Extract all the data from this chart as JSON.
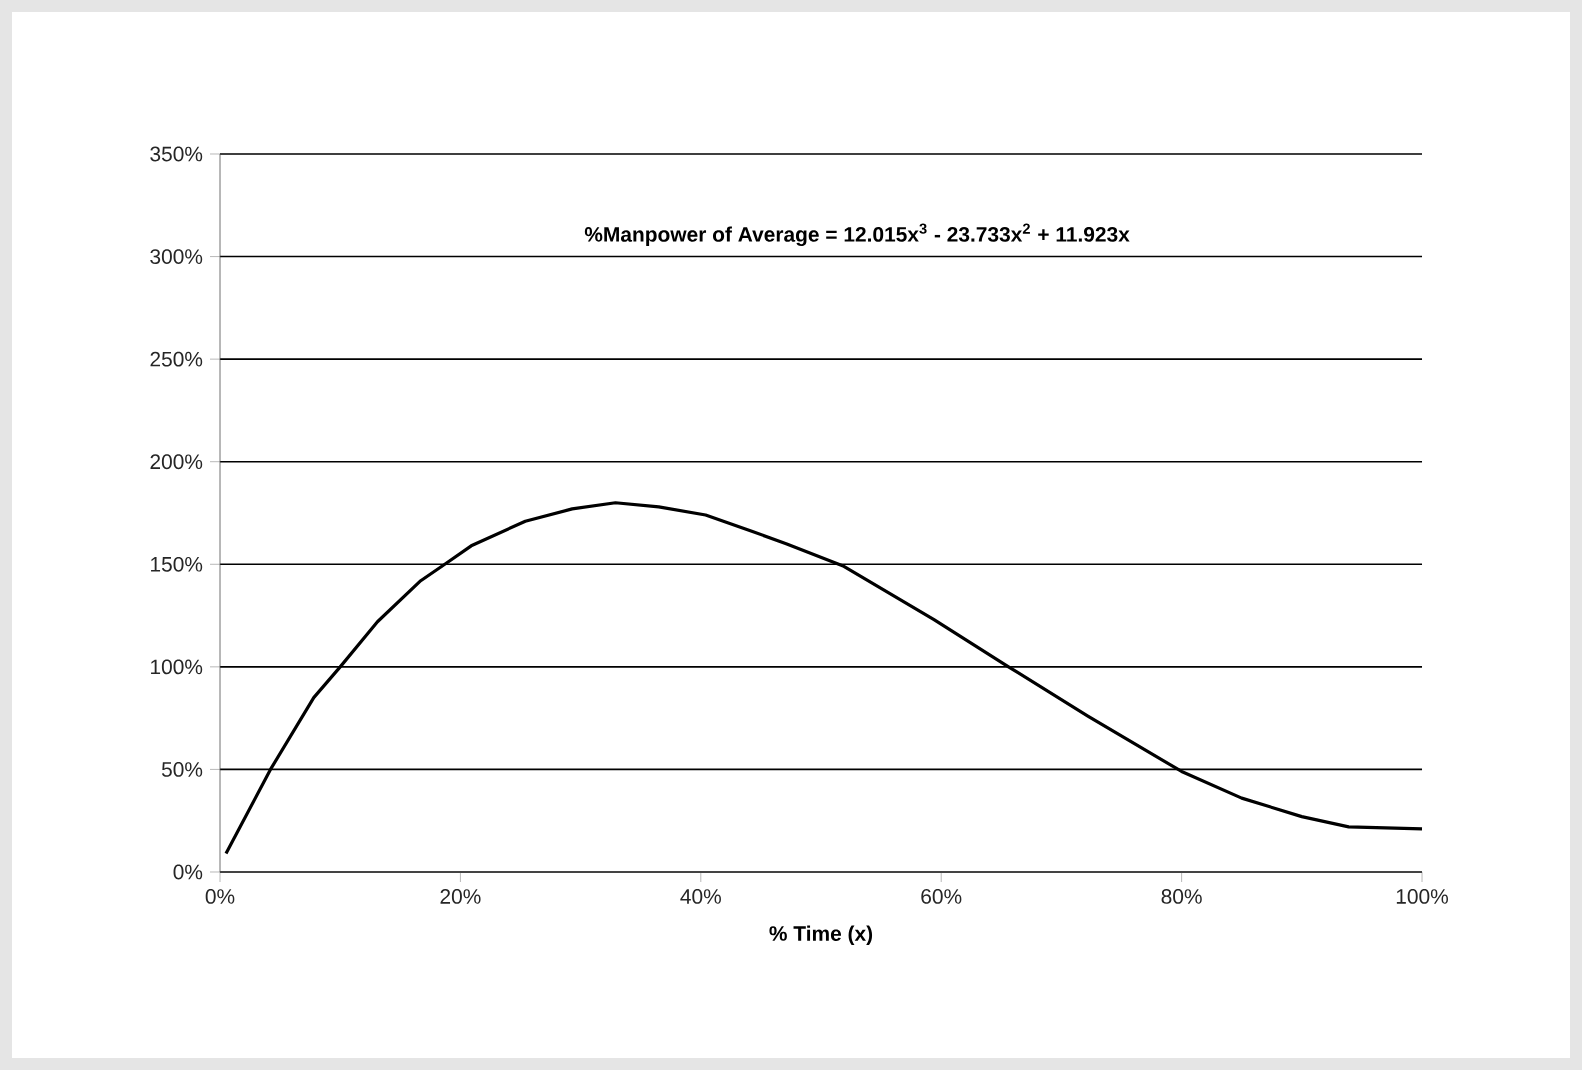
{
  "chart_data": {
    "type": "line",
    "xlabel": "% Time (x)",
    "annotations": [
      "%Manpower of Average = 12.015x$^{3}$ - 23.733x$^{2}$ + 11.923x"
    ],
    "x": [
      0.5,
      4.2,
      7.8,
      10,
      13.1,
      16.7,
      18.7,
      20.9,
      25.4,
      29.3,
      32.9,
      36.5,
      40.4,
      44.3,
      47.1,
      51.9,
      59.4,
      65.6,
      72.2,
      80,
      85,
      90,
      93.9,
      100
    ],
    "series": [
      {
        "color": "#000000",
        "values": [
          9,
          50,
          85,
          100,
          122,
          142,
          150,
          159,
          171,
          177,
          180,
          178,
          174,
          166,
          160,
          149,
          123,
          100,
          76,
          49,
          36,
          27,
          22,
          21
        ]
      }
    ],
    "xlim": [
      0,
      100
    ],
    "xticks": [
      {
        "value": 0,
        "label": "0%"
      },
      {
        "value": 20,
        "label": "20%"
      },
      {
        "value": 40,
        "label": "40%"
      },
      {
        "value": 60,
        "label": "60%"
      },
      {
        "value": 80,
        "label": "80%"
      },
      {
        "value": 100,
        "label": "100%"
      }
    ],
    "ylim": [
      0,
      350
    ],
    "yticks": [
      {
        "value": 0,
        "label": "0%"
      },
      {
        "value": 50,
        "label": "50%"
      },
      {
        "value": 100,
        "label": "100%"
      },
      {
        "value": 150,
        "label": "150%"
      },
      {
        "value": 200,
        "label": "200%"
      },
      {
        "value": 250,
        "label": "250%"
      },
      {
        "value": 300,
        "label": "300%"
      },
      {
        "value": 350,
        "label": "350%"
      }
    ],
    "grid": "y",
    "marker": "none",
    "line_style": "solid"
  }
}
